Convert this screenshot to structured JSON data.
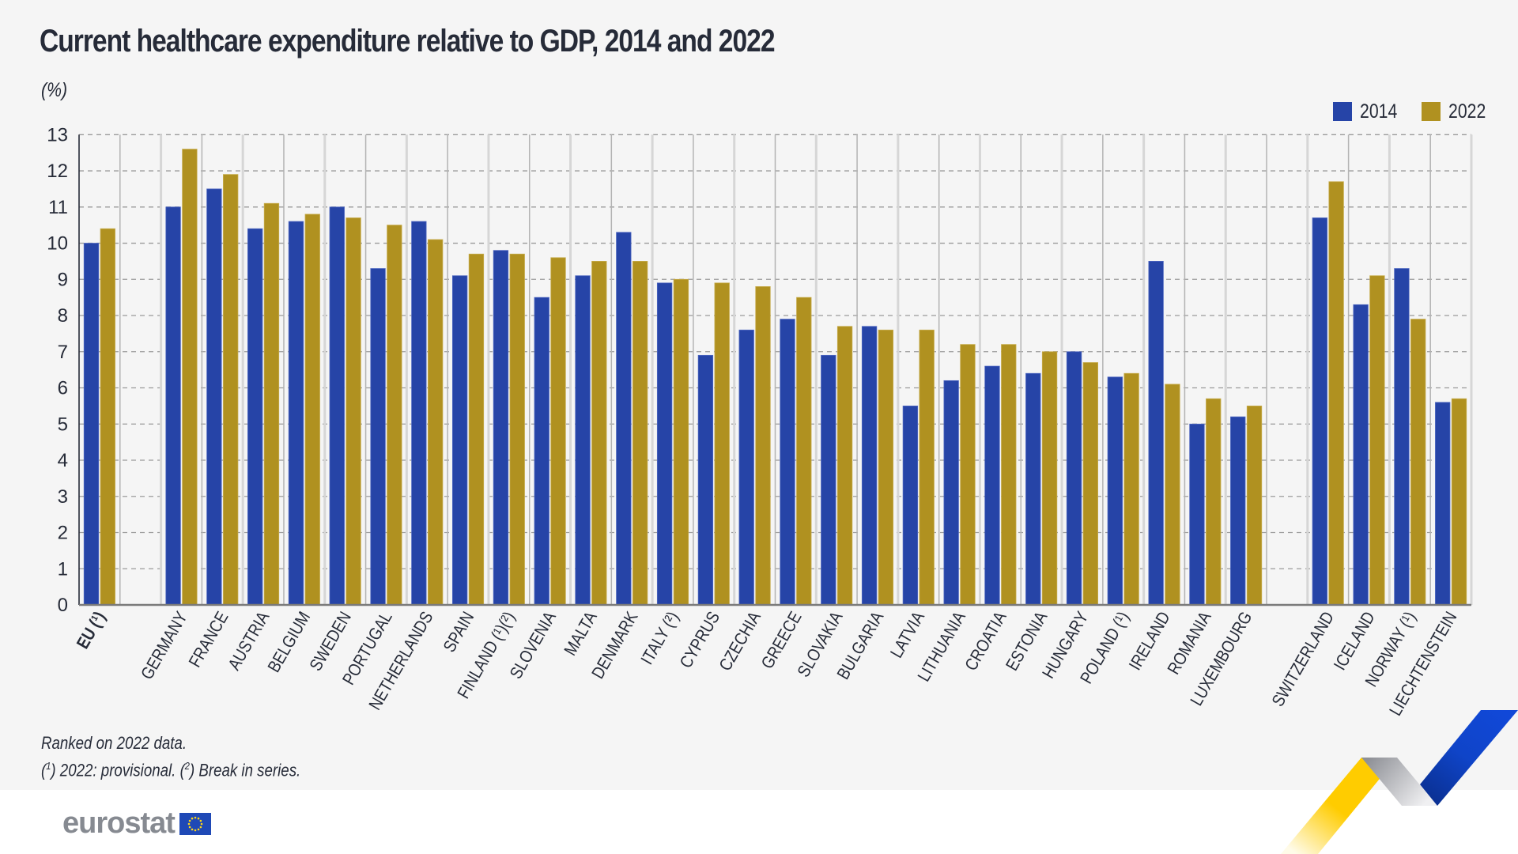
{
  "title": "Current healthcare expenditure relative to GDP, 2014 and 2022",
  "unit": "(%)",
  "legend": [
    {
      "label": "2014",
      "color": "#2644a7"
    },
    {
      "label": "2022",
      "color": "#b09120"
    }
  ],
  "notes": {
    "line1": "Ranked on 2022 data.",
    "line2_parts": [
      "(",
      "1",
      ") 2022: provisional. (",
      "2",
      ") Break in series."
    ]
  },
  "logo": {
    "text": "eurostat",
    "flag": "eu-flag-icon"
  },
  "chart_data": {
    "type": "bar",
    "title": "Current healthcare expenditure relative to GDP, 2014 and 2022",
    "xlabel": "",
    "ylabel": "(%)",
    "ylim": [
      0,
      13
    ],
    "yticks": [
      0,
      1,
      2,
      3,
      4,
      5,
      6,
      7,
      8,
      9,
      10,
      11,
      12,
      13
    ],
    "grid": true,
    "legend_position": "top-right",
    "categories": [
      "EU (¹)",
      "",
      "GERMANY",
      "FRANCE",
      "AUSTRIA",
      "BELGIUM",
      "SWEDEN",
      "PORTUGAL",
      "NETHERLANDS",
      "SPAIN",
      "FINLAND (¹)(²)",
      "SLOVENIA",
      "MALTA",
      "DENMARK",
      "ITALY (²)",
      "CYPRUS",
      "CZECHIA",
      "GREECE",
      "SLOVAKIA",
      "BULGARIA",
      "LATVIA",
      "LITHUANIA",
      "CROATIA",
      "ESTONIA",
      "HUNGARY",
      "POLAND (¹)",
      "IRELAND",
      "ROMANIA",
      "LUXEMBOURG",
      "",
      "SWITZERLAND",
      "ICELAND",
      "NORWAY (¹)",
      "LIECHTENSTEIN"
    ],
    "bold_categories": [
      "EU (¹)"
    ],
    "series": [
      {
        "name": "2014",
        "color": "#2644a7",
        "values": [
          10.0,
          null,
          11.0,
          11.5,
          10.4,
          10.6,
          11.0,
          9.3,
          10.6,
          9.1,
          9.8,
          8.5,
          9.1,
          10.3,
          8.9,
          6.9,
          7.6,
          7.9,
          6.9,
          7.7,
          5.5,
          6.2,
          6.6,
          6.4,
          7.0,
          6.3,
          9.5,
          5.0,
          5.2,
          null,
          10.7,
          8.3,
          9.3,
          5.6
        ]
      },
      {
        "name": "2022",
        "color": "#b09120",
        "values": [
          10.4,
          null,
          12.6,
          11.9,
          11.1,
          10.8,
          10.7,
          10.5,
          10.1,
          9.7,
          9.7,
          9.6,
          9.5,
          9.5,
          9.0,
          8.9,
          8.8,
          8.5,
          7.7,
          7.6,
          7.6,
          7.2,
          7.2,
          7.0,
          6.7,
          6.4,
          6.1,
          5.7,
          5.5,
          null,
          11.7,
          9.1,
          7.9,
          5.7
        ]
      }
    ]
  }
}
